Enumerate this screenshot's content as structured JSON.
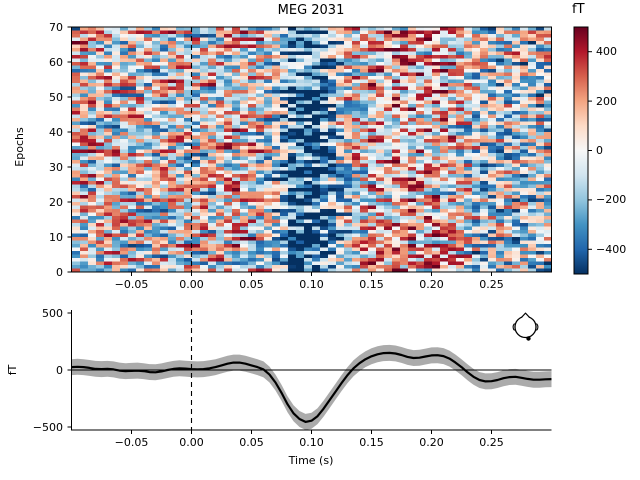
{
  "figure": {
    "background": "#ffffff",
    "text_color": "#000000"
  },
  "heatmap_panel": {
    "title": "MEG 2031",
    "ylabel": "Epochs",
    "ytick_labels": [
      "0",
      "10",
      "20",
      "30",
      "40",
      "50",
      "60",
      "70"
    ],
    "ytick_values": [
      0,
      10,
      20,
      30,
      40,
      50,
      60,
      70
    ]
  },
  "time_axis": {
    "xlabel": "Time (s)",
    "tick_labels": [
      "−0.05",
      "0.00",
      "0.05",
      "0.10",
      "0.15",
      "0.20",
      "0.25"
    ],
    "tick_values": [
      -0.05,
      0.0,
      0.05,
      0.1,
      0.15,
      0.2,
      0.25
    ]
  },
  "colorbar": {
    "label": "fT",
    "tick_labels": [
      "400",
      "200",
      "0",
      "−200",
      "−400"
    ],
    "tick_values": [
      400,
      200,
      0,
      -200,
      -400
    ],
    "vmin": -500,
    "vmax": 500,
    "cmap_name": "RdBu_r",
    "cmap_low_to_high": [
      "#053061",
      "#2166ac",
      "#4393c3",
      "#92c5de",
      "#d1e5f0",
      "#f7f7f7",
      "#fddbc7",
      "#f4a582",
      "#d6604d",
      "#b2182b",
      "#67001f"
    ]
  },
  "evoked_panel": {
    "ylabel": "fT",
    "xlabel": "Time (s)",
    "ytick_labels": [
      "500",
      "0",
      "−500"
    ],
    "ytick_values": [
      500,
      0,
      -500
    ],
    "line_color": "#000000",
    "band_color": "#ababab"
  },
  "chart_data": [
    {
      "type": "heatmap",
      "title": "MEG 2031",
      "ylabel": "Epochs",
      "x_range": [
        -0.1,
        0.3
      ],
      "y_range": [
        0,
        70
      ],
      "n_epochs": 70,
      "n_time_bins": 60,
      "value_unit": "fT",
      "clim": [
        -500,
        500
      ],
      "colormap": "RdBu_r",
      "vline_time": 0,
      "description": "Single-trial MEG epochs image: each row = one epoch (evoked response plus sensor noise). Strong negative (dark blue) vertical band near 0.08-0.12 s; positive (red) band near 0.15-0.21 s.",
      "generation": {
        "seed": 7,
        "noise_amp": 520,
        "signal_scale": 0.95,
        "smooth_prev_weight": 0.4,
        "contrast_exp": 0.7
      }
    },
    {
      "type": "line",
      "name": "evoked mean ± CI",
      "xlabel": "Time (s)",
      "ylabel": "fT",
      "x_start": -0.1,
      "x_step": 0.005,
      "n_points": 81,
      "y": [
        25,
        28,
        25,
        18,
        10,
        8,
        10,
        5,
        -5,
        -10,
        -8,
        -5,
        -10,
        -18,
        -20,
        -12,
        0,
        10,
        15,
        12,
        8,
        5,
        8,
        15,
        25,
        40,
        55,
        65,
        65,
        55,
        40,
        25,
        5,
        -40,
        -110,
        -200,
        -300,
        -380,
        -430,
        -455,
        -445,
        -405,
        -340,
        -265,
        -190,
        -115,
        -45,
        15,
        60,
        95,
        120,
        138,
        148,
        150,
        145,
        132,
        115,
        105,
        108,
        118,
        128,
        130,
        122,
        100,
        65,
        25,
        -20,
        -60,
        -88,
        -100,
        -98,
        -88,
        -72,
        -62,
        -60,
        -68,
        -78,
        -85,
        -85,
        -82,
        -80
      ],
      "ci_halfwidth": 70,
      "xlim": [
        -0.1,
        0.3
      ],
      "ylim": [
        -526,
        526
      ],
      "hline": 0,
      "vline_time": 0
    }
  ]
}
